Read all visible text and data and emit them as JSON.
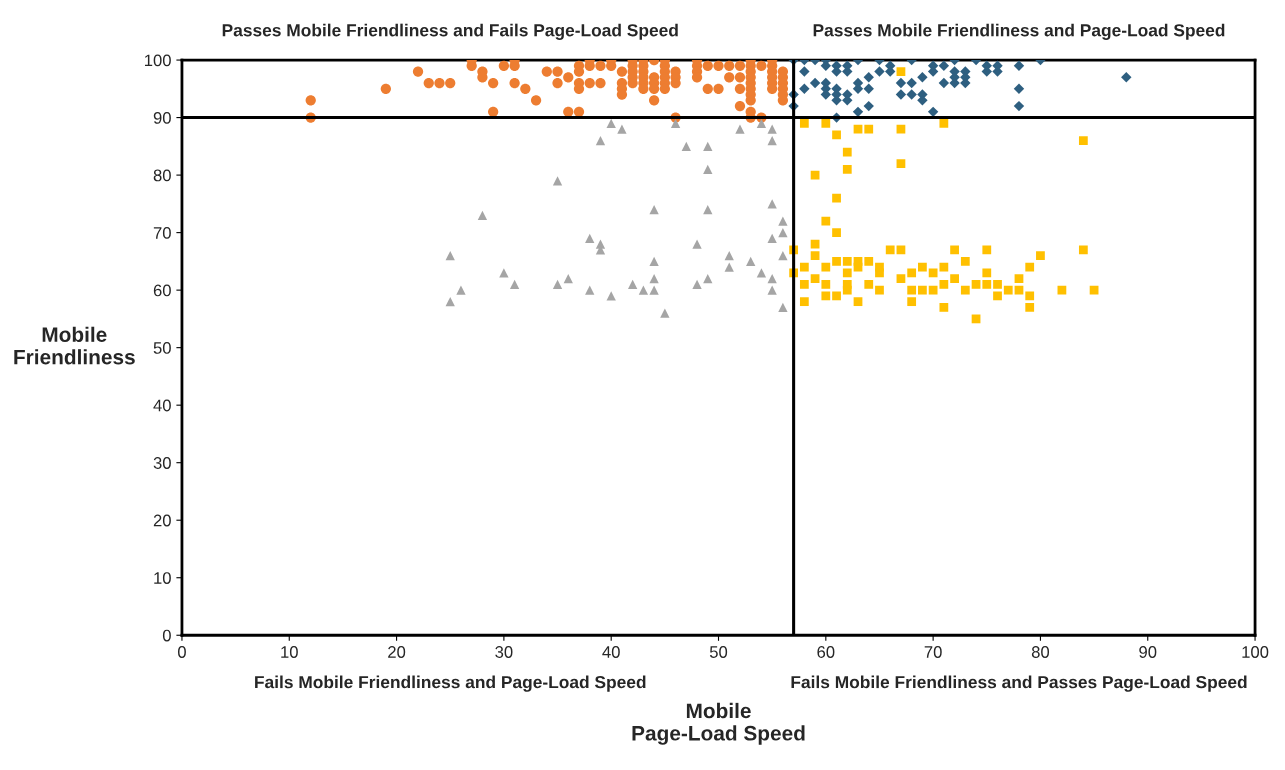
{
  "chart_data": {
    "type": "scatter",
    "xlabel": "Mobile\nPage-Load Speed",
    "ylabel": "Mobile\nFriendliness",
    "xlim": [
      0,
      100
    ],
    "ylim": [
      0,
      100
    ],
    "xticks": [
      0,
      10,
      20,
      30,
      40,
      50,
      60,
      70,
      80,
      90,
      100
    ],
    "yticks": [
      0,
      10,
      20,
      30,
      40,
      50,
      60,
      70,
      80,
      90,
      100
    ],
    "grid": false,
    "ref_lines": [
      {
        "axis": "x",
        "value": 57,
        "label": null,
        "color": "#000000"
      },
      {
        "axis": "y",
        "value": 90,
        "label": null,
        "color": "#000000"
      }
    ],
    "annotations": [
      "Passes Mobile Friendliness and Fails Page-Load Speed",
      "Passes Mobile Friendliness and Page-Load Speed",
      "Fails Mobile Friendliness and Page-Load Speed",
      "Fails Mobile Friendliness and Passes Page-Load Speed"
    ],
    "series": [
      {
        "color": "#ed7d31",
        "marker": "circle",
        "x": [
          12,
          12,
          19,
          22,
          23,
          24,
          25,
          27,
          27,
          28,
          28,
          29,
          29,
          30,
          31,
          31,
          31,
          32,
          33,
          34,
          35,
          35,
          36,
          36,
          37,
          37,
          37,
          37,
          37,
          38,
          38,
          38,
          39,
          39,
          40,
          40,
          41,
          41,
          41,
          41,
          42,
          42,
          42,
          42,
          42,
          43,
          43,
          43,
          43,
          43,
          43,
          44,
          44,
          44,
          44,
          44,
          45,
          45,
          45,
          45,
          45,
          45,
          46,
          46,
          46,
          46,
          48,
          48,
          48,
          48,
          49,
          49,
          50,
          50,
          51,
          51,
          52,
          52,
          52,
          52,
          53,
          53,
          53,
          53,
          53,
          53,
          53,
          53,
          53,
          53,
          54,
          54,
          55,
          55,
          55,
          55,
          55,
          55,
          56,
          56,
          56,
          56,
          56,
          56
        ],
        "values": [
          93,
          90,
          95,
          98,
          96,
          96,
          96,
          100,
          99,
          98,
          97,
          96,
          91,
          99,
          100,
          99,
          96,
          95,
          93,
          98,
          98,
          96,
          97,
          91,
          91,
          99,
          98,
          96,
          95,
          100,
          99,
          96,
          99,
          96,
          100,
          99,
          98,
          96,
          95,
          94,
          100,
          99,
          98,
          97,
          96,
          100,
          99,
          98,
          97,
          96,
          95,
          100,
          97,
          96,
          95,
          93,
          100,
          99,
          98,
          97,
          96,
          95,
          98,
          97,
          96,
          90,
          100,
          99,
          98,
          97,
          99,
          95,
          99,
          95,
          99,
          97,
          99,
          97,
          95,
          92,
          100,
          99,
          98,
          97,
          96,
          95,
          94,
          93,
          91,
          90,
          99,
          90,
          100,
          99,
          98,
          97,
          96,
          95,
          98,
          97,
          96,
          95,
          94,
          93
        ]
      },
      {
        "color": "#2e5f80",
        "marker": "diamond",
        "x": [
          57,
          58,
          59,
          60,
          63,
          65,
          68,
          72,
          74,
          80,
          58,
          60,
          61,
          61,
          62,
          62,
          65,
          66,
          66,
          70,
          70,
          71,
          72,
          73,
          75,
          75,
          76,
          76,
          78,
          64,
          69,
          72,
          73,
          88,
          59,
          60,
          63,
          67,
          68,
          71,
          72,
          73,
          58,
          60,
          61,
          63,
          64,
          78,
          60,
          61,
          62,
          67,
          68,
          69,
          61,
          62,
          69,
          57,
          57,
          64,
          78,
          63,
          70,
          61
        ],
        "values": [
          100,
          100,
          100,
          100,
          100,
          100,
          100,
          100,
          100,
          100,
          98,
          99,
          99,
          98,
          99,
          98,
          98,
          99,
          98,
          99,
          98,
          99,
          98,
          98,
          99,
          98,
          99,
          98,
          99,
          97,
          97,
          97,
          97,
          97,
          96,
          96,
          96,
          96,
          96,
          96,
          96,
          96,
          95,
          95,
          95,
          95,
          95,
          95,
          94,
          94,
          94,
          94,
          94,
          94,
          93,
          93,
          93,
          94,
          92,
          92,
          92,
          91,
          91,
          90
        ]
      },
      {
        "color": "#a5a5a5",
        "marker": "triangle",
        "x": [
          40,
          41,
          39,
          46,
          52,
          54,
          55,
          55,
          47,
          49,
          49,
          35,
          28,
          44,
          49,
          55,
          56,
          56,
          55,
          38,
          39,
          39,
          48,
          25,
          44,
          51,
          56,
          53,
          51,
          30,
          54,
          31,
          35,
          36,
          42,
          44,
          49,
          48,
          55,
          26,
          38,
          43,
          44,
          55,
          40,
          25,
          56,
          45
        ],
        "values": [
          89,
          88,
          86,
          89,
          88,
          89,
          88,
          86,
          85,
          85,
          81,
          79,
          73,
          74,
          74,
          75,
          72,
          70,
          69,
          69,
          68,
          67,
          68,
          66,
          65,
          66,
          66,
          65,
          64,
          63,
          63,
          61,
          61,
          62,
          61,
          62,
          62,
          61,
          62,
          60,
          60,
          60,
          60,
          60,
          59,
          58,
          57,
          56
        ]
      },
      {
        "color": "#ffc000",
        "marker": "square",
        "x": [
          67,
          58,
          60,
          71,
          63,
          64,
          67,
          61,
          84,
          62,
          62,
          67,
          59,
          61,
          60,
          61,
          59,
          57,
          66,
          67,
          72,
          75,
          84,
          59,
          80,
          61,
          62,
          63,
          64,
          73,
          63,
          58,
          60,
          65,
          69,
          71,
          79,
          57,
          62,
          65,
          68,
          70,
          75,
          59,
          67,
          72,
          78,
          58,
          60,
          62,
          64,
          71,
          74,
          75,
          76,
          62,
          65,
          68,
          69,
          70,
          73,
          77,
          78,
          82,
          85,
          60,
          61,
          76,
          79,
          58,
          63,
          68,
          71,
          79,
          74
        ],
        "values": [
          98,
          89,
          89,
          89,
          88,
          88,
          88,
          87,
          86,
          84,
          81,
          82,
          80,
          76,
          72,
          70,
          68,
          67,
          67,
          67,
          67,
          67,
          67,
          66,
          66,
          65,
          65,
          65,
          65,
          65,
          64,
          64,
          64,
          64,
          64,
          64,
          64,
          63,
          63,
          63,
          63,
          63,
          63,
          62,
          62,
          62,
          62,
          61,
          61,
          61,
          61,
          61,
          61,
          61,
          61,
          60,
          60,
          60,
          60,
          60,
          60,
          60,
          60,
          60,
          60,
          59,
          59,
          59,
          59,
          58,
          58,
          58,
          57,
          57,
          55
        ]
      }
    ]
  }
}
